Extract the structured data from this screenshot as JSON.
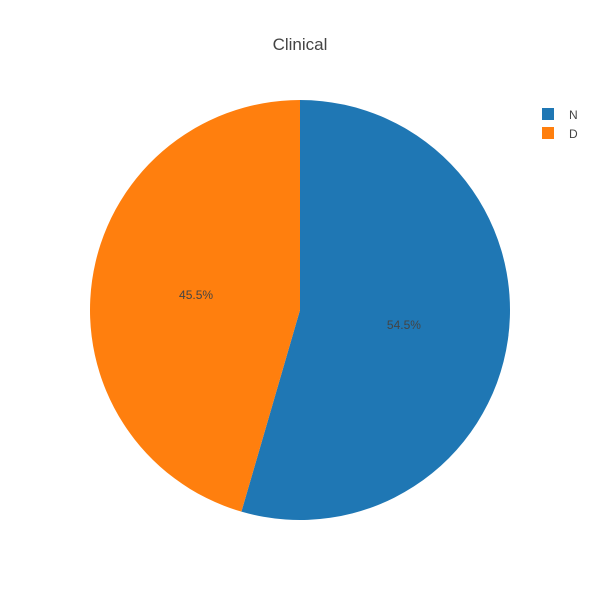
{
  "chart_data": {
    "type": "pie",
    "title": "Clinical",
    "categories": [
      "N",
      "D"
    ],
    "values": [
      54.5,
      45.5
    ],
    "labels": [
      "54.5%",
      "45.5%"
    ],
    "colors": [
      "#1f77b4",
      "#ff7f0e"
    ],
    "legend": {
      "placement": "top-right",
      "entries": [
        "N",
        "D"
      ]
    },
    "direction": "clockwise",
    "start_angle_deg": 90
  }
}
